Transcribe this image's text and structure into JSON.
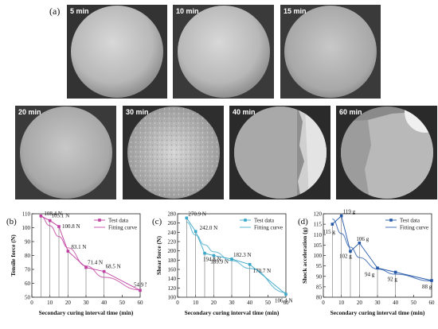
{
  "panel_a": {
    "label": "(a)",
    "images": [
      {
        "time": "5 min",
        "style": "uniform-light"
      },
      {
        "time": "10 min",
        "style": "uniform-light"
      },
      {
        "time": "15 min",
        "style": "uniform-light"
      },
      {
        "time": "20 min",
        "style": "uniform-light"
      },
      {
        "time": "30 min",
        "style": "speckled"
      },
      {
        "time": "40 min",
        "style": "split-dark"
      },
      {
        "time": "60 min",
        "style": "split-cracked"
      }
    ]
  },
  "chart_data": [
    {
      "panel": "(b)",
      "type": "line",
      "xlabel": "Secondary curing interval time  (min)",
      "ylabel": "Tensile force (N)",
      "xlim": [
        0,
        60
      ],
      "ylim": [
        50,
        110
      ],
      "xticks": [
        0,
        10,
        20,
        30,
        40,
        50,
        60
      ],
      "yticks": [
        50,
        60,
        70,
        80,
        90,
        100,
        110
      ],
      "legend": [
        "Test data",
        "Fitting curve"
      ],
      "legend_position": "top-right",
      "color": "#c040a0",
      "x": [
        5,
        10,
        15,
        20,
        30,
        40,
        60
      ],
      "test": [
        108.4,
        105.1,
        100.8,
        83.1,
        71.4,
        68.5,
        54.9
      ],
      "fit": [
        108.2,
        101.4,
        93.6,
        85.5,
        72.5,
        64.3,
        55.2
      ],
      "labels": [
        "108.4 N",
        "105.1 N",
        "100.8 N",
        "83.1 N",
        "71.4 N",
        "68.5 N",
        "54.9 N"
      ]
    },
    {
      "panel": "(c)",
      "type": "line",
      "xlabel": "Secondary curing interval time  (min)",
      "ylabel": "Shear force (N)",
      "xlim": [
        0,
        60
      ],
      "ylim": [
        100,
        280
      ],
      "xticks": [
        0,
        10,
        20,
        30,
        40,
        50,
        60
      ],
      "yticks": [
        100,
        120,
        140,
        160,
        180,
        200,
        220,
        240,
        260,
        280
      ],
      "legend": [
        "Test data",
        "Fitting curve"
      ],
      "legend_position": "top-right",
      "color": "#3ba7c9",
      "x": [
        5,
        10,
        15,
        20,
        30,
        40,
        60
      ],
      "test": [
        270.9,
        242.0,
        194.8,
        189.9,
        182.3,
        170.7,
        106.4
      ],
      "fit": [
        262.0,
        234.0,
        213.0,
        198.0,
        179.0,
        162.0,
        110.0
      ],
      "labels": [
        "270.9 N",
        "242.0 N",
        "194.8 N",
        "189.9 N",
        "182.3 N",
        "170.7 N",
        "106.4 N"
      ]
    },
    {
      "panel": "(d)",
      "type": "line",
      "xlabel": "Secondary curing interval time  (min)",
      "ylabel": "Shock acceleration (g)",
      "xlim": [
        0,
        60
      ],
      "ylim": [
        80,
        120
      ],
      "xticks": [
        0,
        10,
        20,
        30,
        40,
        50,
        60
      ],
      "yticks": [
        80,
        85,
        90,
        95,
        100,
        105,
        110,
        115,
        120
      ],
      "legend": [
        "Test data",
        "Fitting curve"
      ],
      "legend_position": "top-right",
      "color": "#2457a8",
      "x": [
        5,
        10,
        15,
        20,
        30,
        40,
        60
      ],
      "test": [
        115,
        119,
        102,
        106,
        94,
        92,
        88
      ],
      "fit": [
        117.5,
        110.5,
        104.0,
        99.0,
        93.5,
        91.0,
        87.8
      ],
      "labels": [
        "115 g",
        "119 g",
        "102 g",
        "106 g",
        "94 g",
        "92 g",
        "88 g"
      ]
    }
  ]
}
